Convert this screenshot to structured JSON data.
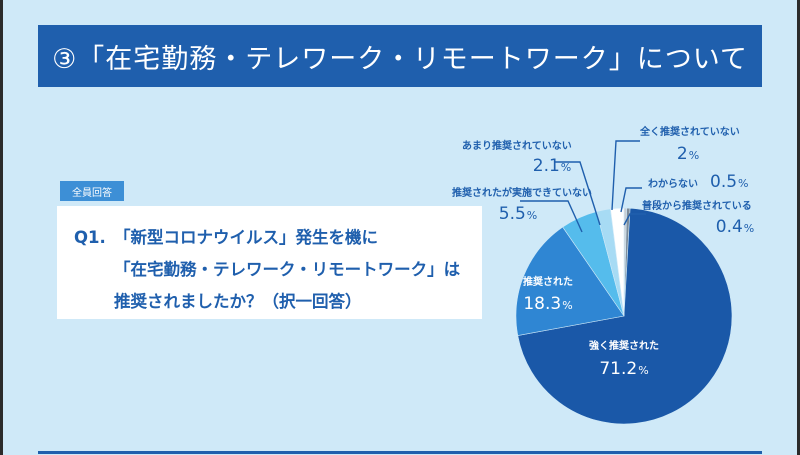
{
  "header": {
    "title": "③「在宅勤務・テレワーク・リモートワーク」について"
  },
  "badge": {
    "label": "全員回答"
  },
  "question": {
    "number": "Q1.",
    "lines": [
      "「新型コロナウイルス」発生を機に",
      "「在宅勤務・テレワーク・リモートワーク」は",
      "推奨されましたか？（択一回答）"
    ]
  },
  "chart_data": {
    "type": "pie",
    "unit": "%",
    "slices": [
      {
        "name": "強く推奨された",
        "value": 71.2,
        "display": "71.2",
        "color": "#1a58a8"
      },
      {
        "name": "推奨された",
        "value": 18.3,
        "display": "18.3",
        "color": "#2f86d3"
      },
      {
        "name": "推奨されたが実施できていない",
        "value": 5.5,
        "display": "5.5",
        "color": "#55bcec"
      },
      {
        "name": "あまり推奨されていない",
        "value": 2.1,
        "display": "2.1",
        "color": "#a7dbf4"
      },
      {
        "name": "全く推奨されていない",
        "value": 2.0,
        "display": "2",
        "color": "#ffffff"
      },
      {
        "name": "わからない",
        "value": 0.5,
        "display": "0.5",
        "color": "#7f8c99"
      },
      {
        "name": "普段から推奨されている",
        "value": 0.4,
        "display": "0.4",
        "color": "#c9cdd2"
      }
    ]
  }
}
